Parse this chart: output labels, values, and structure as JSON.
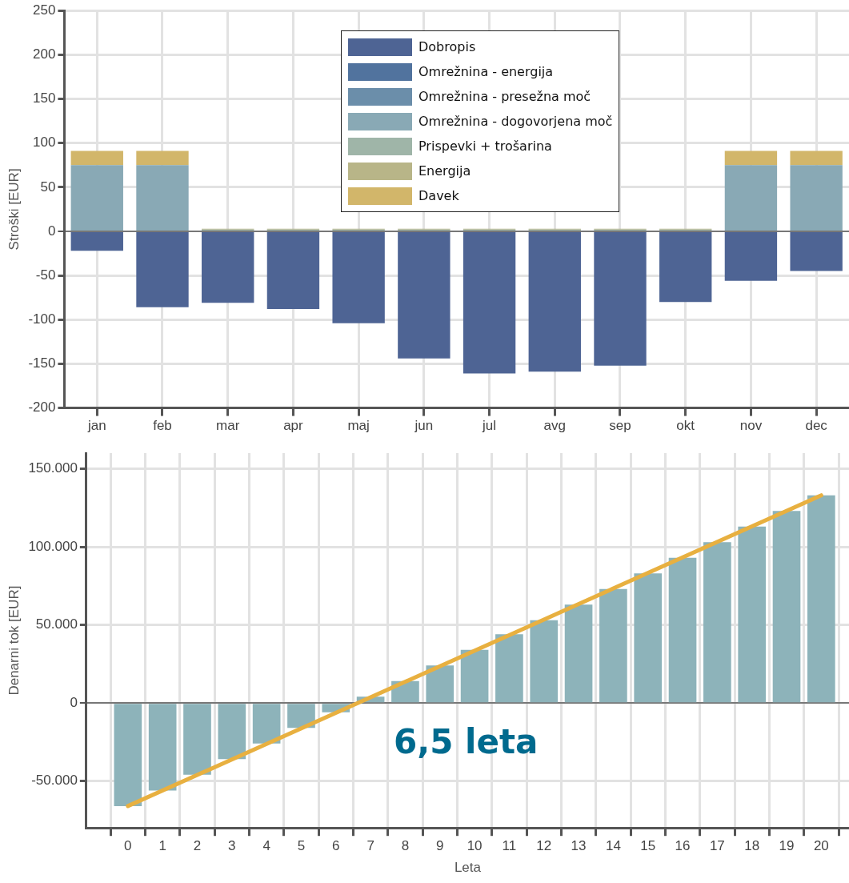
{
  "chart_data": [
    {
      "type": "bar",
      "ylabel": "Stroški [EUR]",
      "categories": [
        "jan",
        "feb",
        "mar",
        "apr",
        "maj",
        "jun",
        "jul",
        "avg",
        "sep",
        "okt",
        "nov",
        "dec"
      ],
      "stacked": true,
      "ylim": [
        -200,
        250
      ],
      "yticks": [
        -200,
        -150,
        -100,
        -50,
        0,
        50,
        100,
        150,
        200,
        250
      ],
      "grid": true,
      "legend": "top",
      "series": [
        {
          "name": "Dobropis",
          "color": "#4e6494",
          "values": [
            -22,
            -86,
            -81,
            -88,
            -104,
            -144,
            -161,
            -159,
            -152,
            -80,
            -56,
            -45
          ]
        },
        {
          "name": "Omrežnina - energija",
          "color": "#51739e",
          "values": [
            0,
            0,
            0,
            0,
            0,
            0,
            0,
            0,
            0,
            0,
            0,
            0
          ]
        },
        {
          "name": "Omrežnina - presežna moč",
          "color": "#6b8eaa",
          "values": [
            0,
            0,
            0,
            0,
            0,
            0,
            0,
            0,
            0,
            0,
            0,
            0
          ]
        },
        {
          "name": "Omrežnina - dogovorjena moč",
          "color": "#89a9b5",
          "values": [
            75,
            75,
            0,
            0,
            0,
            0,
            0,
            0,
            0,
            0,
            75,
            75
          ]
        },
        {
          "name": "Prispevki + trošarina",
          "color": "#9fb5a8",
          "values": [
            0,
            0,
            2,
            2,
            2,
            2,
            2,
            2,
            2,
            2,
            0,
            0
          ]
        },
        {
          "name": "Energija",
          "color": "#b8b588",
          "values": [
            0,
            0,
            1,
            1,
            1,
            1,
            1,
            1,
            1,
            1,
            0,
            0
          ]
        },
        {
          "name": "Davek",
          "color": "#d2b66a",
          "values": [
            16,
            16,
            0,
            0,
            0,
            0,
            0,
            0,
            0,
            0,
            16,
            16
          ]
        }
      ]
    },
    {
      "type": "bar",
      "xlabel": "Leta",
      "ylabel": "Denarni tok [EUR]",
      "x": [
        0,
        1,
        2,
        3,
        4,
        5,
        6,
        7,
        8,
        9,
        10,
        11,
        12,
        13,
        14,
        15,
        16,
        17,
        18,
        19,
        20
      ],
      "xlim": [
        -1.2,
        20.8
      ],
      "xticks": [
        0,
        1,
        2,
        3,
        4,
        5,
        6,
        7,
        8,
        9,
        10,
        11,
        12,
        13,
        14,
        15,
        16,
        17,
        18,
        19,
        20
      ],
      "ylim": [
        -80000,
        160000
      ],
      "yticks": [
        {
          "value": -50000,
          "label": "-50.000"
        },
        0,
        {
          "value": 50000,
          "label": "50.000"
        },
        {
          "value": 100000,
          "label": "100.000"
        },
        {
          "value": 150000,
          "label": "150.000"
        }
      ],
      "grid": true,
      "annotations": [
        "6,5 leta"
      ],
      "series": [
        {
          "color": "#8db3ba",
          "values": [
            -66000,
            -56000,
            -46000,
            -36000,
            -26000,
            -16000,
            -6000,
            4000,
            14000,
            24000,
            34000,
            44000,
            53000,
            63000,
            73000,
            83000,
            93000,
            103000,
            113000,
            123000,
            133000
          ]
        },
        {
          "type": "line",
          "color": "#e8b040",
          "marker": "none",
          "x": [
            0,
            20
          ],
          "values": [
            -66000,
            133000
          ]
        }
      ]
    }
  ]
}
